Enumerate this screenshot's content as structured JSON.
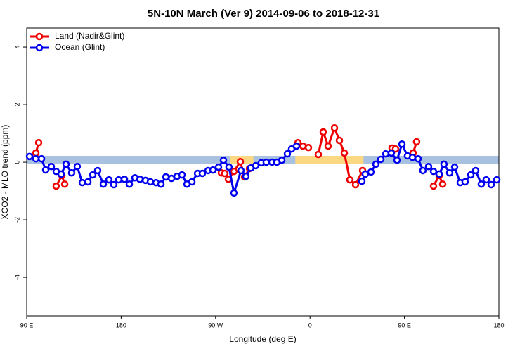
{
  "chart_data": {
    "type": "line",
    "title": "5N-10N March (Ver 9)   2014-09-06 to 2018-12-31",
    "x_label": "Longitude (deg E)",
    "y_label": "XCO2 - MLO trend (ppm)",
    "xlim": [
      90,
      540
    ],
    "xticks": [
      {
        "value": 90,
        "label": "90 E"
      },
      {
        "value": 180,
        "label": "180"
      },
      {
        "value": 270,
        "label": "90 W"
      },
      {
        "value": 360,
        "label": "0"
      },
      {
        "value": 450,
        "label": "90 E"
      },
      {
        "value": 540,
        "label": "180"
      }
    ],
    "ylim": [
      -5.34,
      4.66
    ],
    "yticks": [
      -4,
      -2,
      0,
      2,
      4
    ],
    "ocean_band": {
      "range": [
        -0.05,
        0.22
      ],
      "color": "#a8c1e0"
    },
    "land_regions": {
      "ranges": [
        [
          284,
          306
        ],
        [
          346,
          411
        ]
      ],
      "color": "#fdd882"
    },
    "legend": "top-left",
    "series": [
      {
        "name": "Land (Nadir&Glint)",
        "color": "#ee0000",
        "x": [
          98.7,
          101.4,
          null,
          118.1,
          123.5,
          126.2,
          null,
          275.5,
          278.8,
          282.2,
          287.5,
          293.6,
          297.6,
          302.3,
          null,
          348.5,
          353.2,
          358.5,
          null,
          367.9,
          372.6,
          377.3,
          383.3,
          388.0,
          392.7,
          398.0,
          403.4,
          410.1,
          null,
          438.2,
          441.5,
          null,
          458.3,
          461.6,
          null,
          477.7,
          483.1,
          486.4
        ],
        "values": [
          0.32,
          0.68,
          null,
          -0.83,
          -0.46,
          -0.76,
          null,
          -0.37,
          -0.39,
          -0.59,
          -0.32,
          0.02,
          -0.51,
          -0.22,
          null,
          0.68,
          0.56,
          0.51,
          null,
          0.27,
          1.05,
          0.56,
          1.19,
          0.76,
          0.32,
          -0.61,
          -0.78,
          -0.29,
          null,
          0.49,
          0.46,
          null,
          0.32,
          0.71,
          null,
          -0.83,
          -0.46,
          -0.76
        ]
      },
      {
        "name": "Ocean (Glint)",
        "color": "#0000ee",
        "x": [
          92.7,
          98.7,
          104.1,
          108.1,
          113.4,
          118.1,
          122.8,
          127.5,
          132.8,
          138.2,
          142.9,
          148.3,
          152.9,
          157.6,
          163.0,
          168.3,
          173.0,
          177.7,
          183.1,
          187.8,
          193.1,
          197.8,
          203.2,
          207.9,
          213.2,
          217.9,
          222.6,
          228.0,
          233.3,
          238.0,
          242.7,
          247.4,
          252.8,
          257.4,
          262.8,
          267.5,
          272.8,
          277.5,
          282.8,
          287.5,
          294.2,
          298.9,
          303.6,
          308.3,
          313.6,
          318.3,
          323.7,
          328.4,
          333.1,
          338.4,
          342.4,
          347.1,
          null,
          409.4,
          412.7,
          418.1,
          422.8,
          427.5,
          432.2,
          437.5,
          442.9,
          447.6,
          452.9,
          457.6,
          463.0,
          467.6,
          473.0,
          477.7,
          483.1,
          487.7,
          493.1,
          497.8,
          503.1,
          507.8,
          513.2,
          517.9,
          523.2,
          527.9,
          532.6,
          538.0
        ],
        "values": [
          0.2,
          0.12,
          0.12,
          -0.27,
          -0.15,
          -0.32,
          -0.41,
          -0.07,
          -0.37,
          -0.15,
          -0.71,
          -0.68,
          -0.44,
          -0.29,
          -0.76,
          -0.61,
          -0.78,
          -0.61,
          -0.59,
          -0.76,
          -0.54,
          -0.59,
          -0.63,
          -0.68,
          -0.71,
          -0.76,
          -0.51,
          -0.56,
          -0.49,
          -0.44,
          -0.76,
          -0.68,
          -0.39,
          -0.39,
          -0.29,
          -0.27,
          -0.17,
          0.07,
          -0.17,
          -1.07,
          -0.29,
          -0.49,
          -0.2,
          -0.12,
          -0.02,
          0,
          0,
          0,
          0.07,
          0.29,
          0.46,
          0.56,
          null,
          -0.66,
          -0.41,
          -0.34,
          -0.07,
          0.1,
          0.29,
          0.32,
          0.07,
          0.63,
          0.22,
          0.17,
          0.12,
          -0.29,
          -0.15,
          -0.32,
          -0.41,
          -0.07,
          -0.37,
          -0.17,
          -0.71,
          -0.68,
          -0.44,
          -0.29,
          -0.76,
          -0.61,
          -0.78,
          -0.61
        ]
      }
    ]
  }
}
